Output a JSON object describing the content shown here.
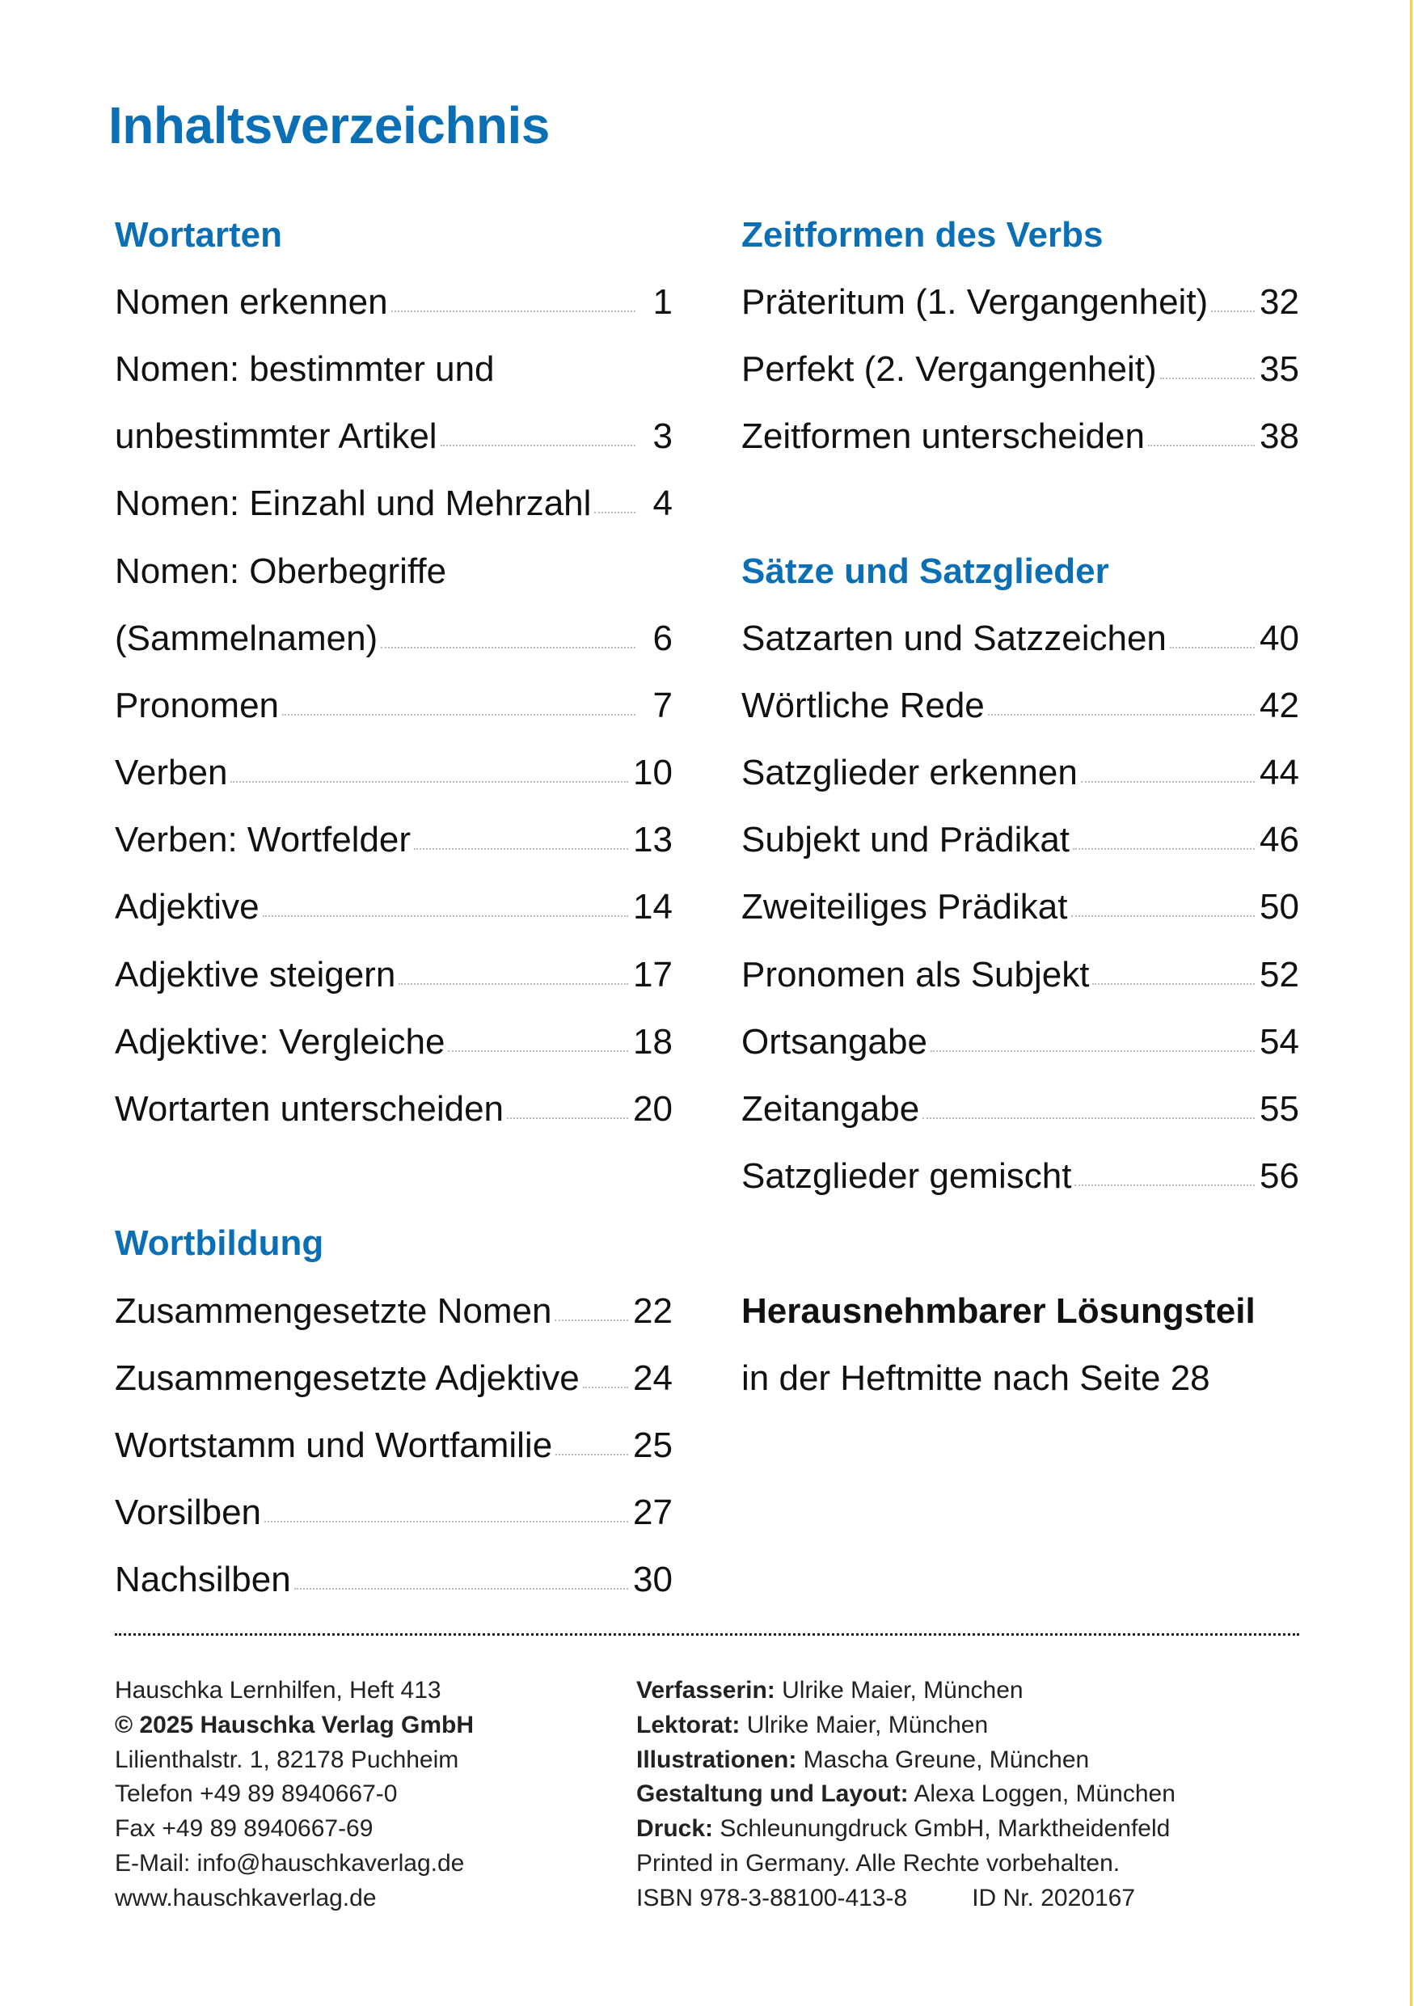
{
  "title": "Inhaltsverzeichnis",
  "colors": {
    "accent": "#0b6fb6",
    "edge": "#f2d24a"
  },
  "left_column": [
    {
      "type": "heading",
      "text": "Wortarten"
    },
    {
      "type": "entry",
      "text": "Nomen erkennen",
      "page": "1"
    },
    {
      "type": "text",
      "text": "Nomen: bestimmter und"
    },
    {
      "type": "entry",
      "text": "unbestimmter Artikel",
      "page": "3"
    },
    {
      "type": "entry",
      "text": "Nomen: Einzahl und Mehrzahl",
      "page": "4"
    },
    {
      "type": "text",
      "text": "Nomen: Oberbegriffe"
    },
    {
      "type": "entry",
      "text": "(Sammelnamen)",
      "page": "6"
    },
    {
      "type": "entry",
      "text": "Pronomen",
      "page": "7"
    },
    {
      "type": "entry",
      "text": "Verben",
      "page": "10"
    },
    {
      "type": "entry",
      "text": "Verben: Wortfelder",
      "page": "13"
    },
    {
      "type": "entry",
      "text": "Adjektive",
      "page": "14"
    },
    {
      "type": "entry",
      "text": "Adjektive steigern",
      "page": "17"
    },
    {
      "type": "entry",
      "text": "Adjektive: Vergleiche",
      "page": "18"
    },
    {
      "type": "entry",
      "text": "Wortarten unterscheiden",
      "page": "20"
    },
    {
      "type": "blank"
    },
    {
      "type": "heading",
      "text": "Wortbildung"
    },
    {
      "type": "entry",
      "text": "Zusammengesetzte Nomen",
      "page": "22"
    },
    {
      "type": "entry",
      "text": "Zusammengesetzte Adjektive",
      "page": "24"
    },
    {
      "type": "entry",
      "text": "Wortstamm und Wortfamilie",
      "page": "25"
    },
    {
      "type": "entry",
      "text": "Vorsilben",
      "page": "27"
    },
    {
      "type": "entry",
      "text": "Nachsilben",
      "page": "30"
    }
  ],
  "right_column": [
    {
      "type": "heading",
      "text": "Zeitformen des Verbs"
    },
    {
      "type": "entry",
      "text": "Präteritum (1. Vergangenheit)",
      "page": "32"
    },
    {
      "type": "entry",
      "text": "Perfekt (2. Vergangenheit)",
      "page": "35"
    },
    {
      "type": "entry",
      "text": "Zeitformen unterscheiden",
      "page": "38"
    },
    {
      "type": "blank"
    },
    {
      "type": "heading",
      "text": "Sätze und Satzglieder"
    },
    {
      "type": "entry",
      "text": "Satzarten und Satzzeichen",
      "page": "40"
    },
    {
      "type": "entry",
      "text": "Wörtliche Rede",
      "page": "42"
    },
    {
      "type": "entry",
      "text": "Satzglieder erkennen",
      "page": "44"
    },
    {
      "type": "entry",
      "text": "Subjekt und Prädikat",
      "page": "46"
    },
    {
      "type": "entry",
      "text": "Zweiteiliges Prädikat",
      "page": "50"
    },
    {
      "type": "entry",
      "text": "Pronomen als Subjekt",
      "page": "52"
    },
    {
      "type": "entry",
      "text": "Ortsangabe",
      "page": "54"
    },
    {
      "type": "entry",
      "text": "Zeitangabe",
      "page": "55"
    },
    {
      "type": "entry",
      "text": "Satzglieder gemischt",
      "page": "56"
    },
    {
      "type": "blank"
    },
    {
      "type": "bold",
      "text": "Herausnehmbarer Lösungsteil"
    },
    {
      "type": "text",
      "text": "in der Heftmitte nach Seite 28"
    }
  ],
  "footer": {
    "left": [
      {
        "bold": "",
        "text": "Hauschka Lernhilfen, Heft 413"
      },
      {
        "bold": "© 2025 Hauschka Verlag GmbH",
        "text": ""
      },
      {
        "bold": "",
        "text": "Lilienthalstr. 1, 82178 Puchheim"
      },
      {
        "bold": "",
        "text": "Telefon +49 89 8940667-0"
      },
      {
        "bold": "",
        "text": "Fax +49 89 8940667-69"
      },
      {
        "bold": "",
        "text": "E-Mail: info@hauschkaverlag.de"
      },
      {
        "bold": "",
        "text": "www.hauschkaverlag.de"
      }
    ],
    "right": [
      {
        "bold": "Verfasserin:",
        "text": " Ulrike Maier, München"
      },
      {
        "bold": "Lektorat:",
        "text": " Ulrike Maier, München"
      },
      {
        "bold": "Illustrationen:",
        "text": " Mascha Greune, München"
      },
      {
        "bold": "Gestaltung und Layout:",
        "text": " Alexa Loggen, München"
      },
      {
        "bold": "Druck:",
        "text": " Schleunungdruck GmbH, Marktheidenfeld"
      },
      {
        "bold": "",
        "text": "Printed in Germany. Alle Rechte vorbehalten."
      }
    ],
    "isbn": "ISBN 978-3-88100-413-8",
    "id_nr": "ID Nr. 2020167"
  }
}
